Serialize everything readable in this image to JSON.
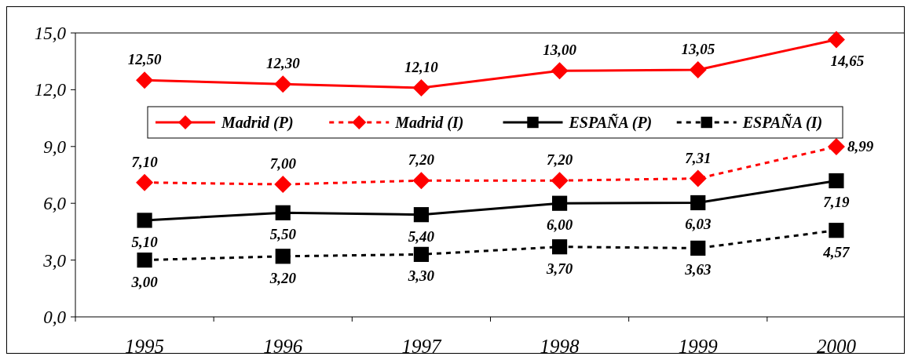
{
  "chart_data": {
    "type": "line",
    "categories": [
      "1995",
      "1996",
      "1997",
      "1998",
      "1999",
      "2000"
    ],
    "ylim": [
      0,
      15
    ],
    "yticks": [
      {
        "value": 0,
        "label": "0,0"
      },
      {
        "value": 3,
        "label": "3,0"
      },
      {
        "value": 6,
        "label": "6,0"
      },
      {
        "value": 9,
        "label": "9,0"
      },
      {
        "value": 12,
        "label": "12,0"
      },
      {
        "value": 15,
        "label": "15,0"
      }
    ],
    "grid": false,
    "legend": "top",
    "series": [
      {
        "name": "Madrid (P)",
        "color": "#ff0000",
        "marker": "diamond",
        "line_style": "solid",
        "values": [
          12.5,
          12.3,
          12.1,
          13.0,
          13.05,
          14.65
        ],
        "value_labels": [
          "12,50",
          "12,30",
          "12,10",
          "13,00",
          "13,05",
          "14,65"
        ]
      },
      {
        "name": "Madrid (I)",
        "color": "#ff0000",
        "marker": "diamond",
        "line_style": "dashed",
        "values": [
          7.1,
          7.0,
          7.2,
          7.2,
          7.31,
          8.99
        ],
        "value_labels": [
          "7,10",
          "7,00",
          "7,20",
          "7,20",
          "7,31",
          "8,99"
        ]
      },
      {
        "name": "ESPAÑA (P)",
        "color": "#000000",
        "marker": "square",
        "line_style": "solid",
        "values": [
          5.1,
          5.5,
          5.4,
          6.0,
          6.03,
          7.19
        ],
        "value_labels": [
          "5,10",
          "5,50",
          "5,40",
          "6,00",
          "6,03",
          "7,19"
        ]
      },
      {
        "name": "ESPAÑA (I)",
        "color": "#000000",
        "marker": "square",
        "line_style": "dashed",
        "values": [
          3.0,
          3.2,
          3.3,
          3.7,
          3.63,
          4.57
        ],
        "value_labels": [
          "3,00",
          "3,20",
          "3,30",
          "3,70",
          "3,63",
          "4,57"
        ]
      }
    ]
  }
}
